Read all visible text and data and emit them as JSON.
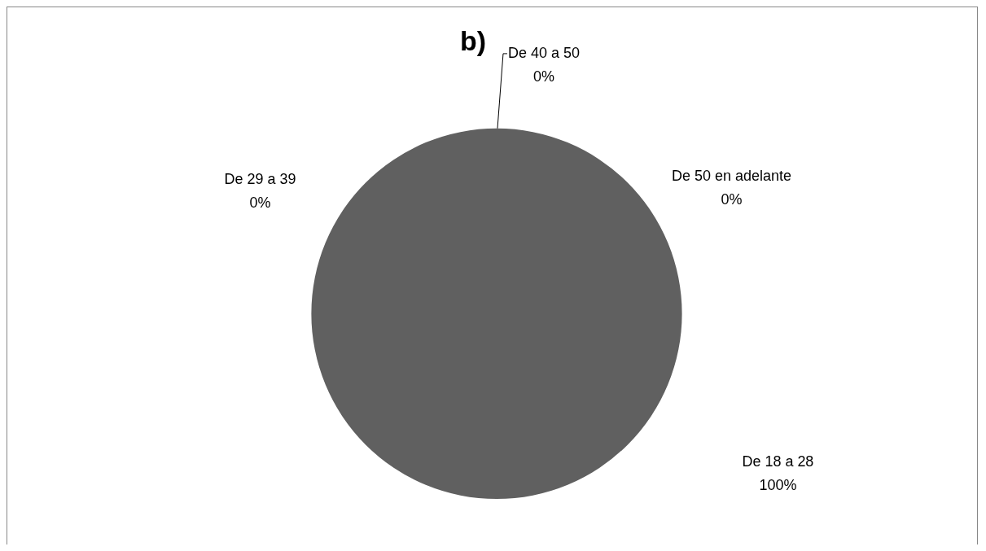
{
  "chart_data": {
    "type": "pie",
    "title": "b)",
    "categories": [
      "De 18 a 28",
      "De 29 a 39",
      "De 40 a 50",
      "De 50 en adelante"
    ],
    "values": [
      100,
      0,
      0,
      0
    ],
    "colors": [
      "#606060",
      "#606060",
      "#606060",
      "#606060"
    ],
    "value_labels": [
      "100%",
      "0%",
      "0%",
      "0%"
    ]
  }
}
